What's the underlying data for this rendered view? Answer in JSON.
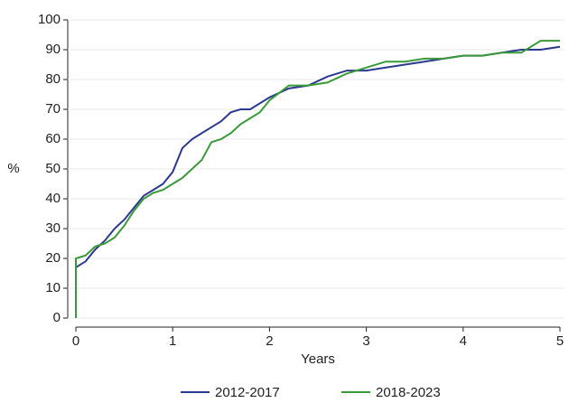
{
  "chart_data": {
    "type": "line",
    "x_label": "Years",
    "y_label": "%",
    "x": [
      0,
      0,
      0.1,
      0.2,
      0.3,
      0.4,
      0.5,
      0.6,
      0.7,
      0.8,
      0.9,
      1.0,
      1.1,
      1.2,
      1.3,
      1.4,
      1.5,
      1.6,
      1.7,
      1.8,
      1.9,
      2.0,
      2.2,
      2.4,
      2.6,
      2.8,
      3.0,
      3.2,
      3.4,
      3.6,
      3.8,
      4.0,
      4.2,
      4.4,
      4.6,
      4.8,
      5.0
    ],
    "series": [
      {
        "name": "2012-2017",
        "color": "#2b3990",
        "values": [
          0,
          17,
          19,
          23,
          26,
          30,
          33,
          37,
          41,
          43,
          45,
          49,
          57,
          60,
          62,
          64,
          66,
          69,
          70,
          70,
          72,
          74,
          77,
          78,
          81,
          83,
          83,
          84,
          85,
          86,
          87,
          88,
          88,
          89,
          90,
          90,
          91
        ]
      },
      {
        "name": "2018-2023",
        "color": "#3a9a3a",
        "values": [
          0,
          20,
          21,
          24,
          25,
          27,
          31,
          36,
          40,
          42,
          43,
          45,
          47,
          50,
          53,
          59,
          60,
          62,
          65,
          67,
          69,
          73,
          78,
          78,
          79,
          82,
          84,
          86,
          86,
          87,
          87,
          88,
          88,
          89,
          89,
          93,
          93
        ]
      }
    ],
    "xlim": [
      0,
      5
    ],
    "xticks": [
      0,
      1,
      2,
      3,
      4,
      5
    ],
    "ylim": [
      0,
      100
    ],
    "yticks": [
      0,
      10,
      20,
      30,
      40,
      50,
      60,
      70,
      80,
      90,
      100
    ],
    "grid": true,
    "legend": "bottom"
  }
}
